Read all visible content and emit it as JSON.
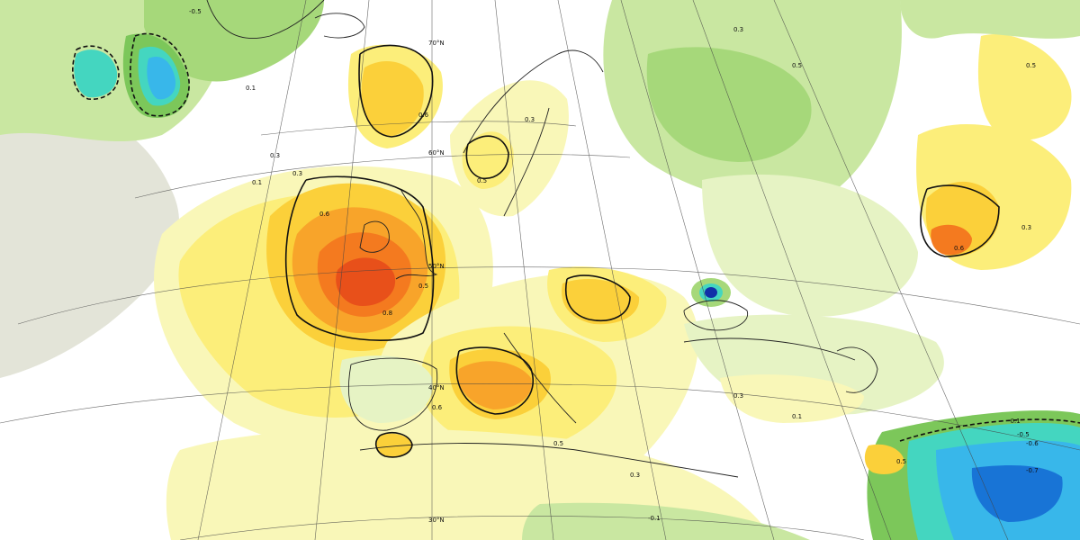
{
  "map": {
    "latitude_labels": [
      "30°N",
      "40°N",
      "50°N",
      "60°N",
      "70°N"
    ],
    "contour_labels": [
      {
        "id": "atl-w-0_1",
        "text": "0.1"
      },
      {
        "id": "atl-w-0_3",
        "text": "0.3"
      },
      {
        "id": "ice-0_1",
        "text": "0.1"
      },
      {
        "id": "ice-0_3",
        "text": "0.3"
      },
      {
        "id": "ice-0_6",
        "text": "0.6"
      },
      {
        "id": "uk-0_6",
        "text": "0.6"
      },
      {
        "id": "uk-0_8",
        "text": "0.8"
      },
      {
        "id": "uk-0_5",
        "text": "0.5"
      },
      {
        "id": "med-0_3",
        "text": "0.3"
      },
      {
        "id": "med-0_5",
        "text": "0.5"
      },
      {
        "id": "med-0_6",
        "text": "0.6"
      },
      {
        "id": "scand-0_5",
        "text": "0.5"
      },
      {
        "id": "scand-0_3",
        "text": "0.3"
      },
      {
        "id": "russia-0_3",
        "text": "0.3"
      },
      {
        "id": "russia-0_5",
        "text": "0.5"
      },
      {
        "id": "kaz-0_6",
        "text": "0.6"
      },
      {
        "id": "kaz-0_5",
        "text": "0.5"
      },
      {
        "id": "kaz-0_3",
        "text": "0.3"
      },
      {
        "id": "turk-0_3",
        "text": "0.3"
      },
      {
        "id": "turk-0_1",
        "text": "0.1"
      },
      {
        "id": "arab-0_1",
        "text": "-0.1"
      },
      {
        "id": "arab-0_5",
        "text": "-0.5"
      },
      {
        "id": "arab-0_6",
        "text": "-0.6"
      },
      {
        "id": "arab-0_7",
        "text": "-0.7"
      },
      {
        "id": "grl-0_5",
        "text": "-0.5"
      },
      {
        "id": "africa-0_1",
        "text": "-0.1"
      },
      {
        "id": "egypt-0_5",
        "text": "0.5"
      }
    ],
    "colors": {
      "background": "#ffffff",
      "neg_0_1": "#e3e4d8",
      "pos_0_1": "#f9f7b8",
      "pos_0_3": "#fcee7a",
      "pos_0_5": "#fbd03a",
      "pos_0_6": "#f8a42a",
      "pos_0_7": "#f47a1f",
      "pos_0_8": "#e8501a",
      "pos_0_9": "#c0261a",
      "green_1": "#e6f3c4",
      "green_2": "#c9e7a1",
      "green_3": "#a6d87a",
      "green_4": "#7cc75a",
      "cyan": "#44d6c0",
      "lightblue": "#38b7ea",
      "blue": "#1874d6",
      "navy": "#1130a8",
      "contour": "#111111",
      "coast": "#222222",
      "grid": "#444444"
    }
  }
}
